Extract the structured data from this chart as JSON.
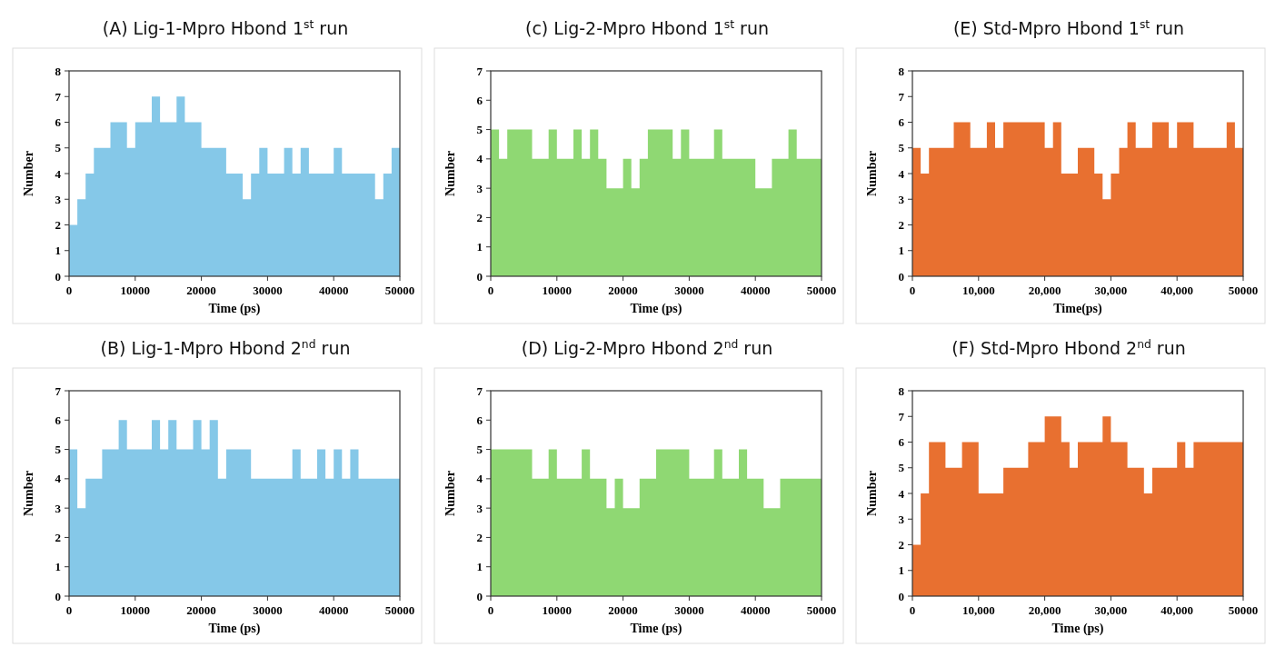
{
  "chart_data": [
    {
      "type": "area",
      "title": "(A) Lig-1-Mpro Hbond 1$^{st}$ run",
      "xlabel": "Time (ps)",
      "ylabel": "Number",
      "x": [
        0,
        1250,
        2500,
        3750,
        5000,
        6250,
        7500,
        8750,
        10000,
        11250,
        12500,
        13750,
        15000,
        16250,
        17500,
        18750,
        20000,
        21250,
        22500,
        23750,
        25000,
        26250,
        27500,
        28750,
        30000,
        31250,
        32500,
        33750,
        35000,
        36250,
        37500,
        38750,
        40000,
        41250,
        42500,
        43750,
        45000,
        46250,
        47500,
        48750,
        50000
      ],
      "xlim": [
        0,
        50000
      ],
      "xticks": [
        0,
        10000,
        20000,
        30000,
        40000,
        50000
      ],
      "ylim": [
        0,
        8
      ],
      "yticks": [
        0,
        1,
        2,
        3,
        4,
        5,
        6,
        7,
        8
      ],
      "series": [
        {
          "color": "#85c8e8",
          "values": [
            2,
            3,
            4,
            5,
            5,
            6,
            6,
            5,
            6,
            6,
            7,
            6,
            6,
            7,
            6,
            6,
            5,
            5,
            5,
            4,
            4,
            3,
            4,
            5,
            4,
            4,
            5,
            4,
            5,
            4,
            4,
            4,
            5,
            4,
            4,
            4,
            4,
            3,
            4,
            5,
            4
          ]
        }
      ]
    },
    {
      "type": "area",
      "title": "(c) Lig-2-Mpro Hbond 1$^{st}$ run",
      "xlabel": "Time (ps)",
      "ylabel": "Number",
      "x": [
        0,
        1250,
        2500,
        3750,
        5000,
        6250,
        7500,
        8750,
        10000,
        11250,
        12500,
        13750,
        15000,
        16250,
        17500,
        18750,
        20000,
        21250,
        22500,
        23750,
        25000,
        26250,
        27500,
        28750,
        30000,
        31250,
        32500,
        33750,
        35000,
        36250,
        37500,
        38750,
        40000,
        41250,
        42500,
        43750,
        45000,
        46250,
        47500,
        48750,
        50000
      ],
      "xlim": [
        0,
        50000
      ],
      "xticks": [
        0,
        10000,
        20000,
        30000,
        40000,
        50000
      ],
      "ylim": [
        0,
        7
      ],
      "yticks": [
        0,
        1,
        2,
        3,
        4,
        5,
        6,
        7
      ],
      "series": [
        {
          "color": "#8fd873",
          "values": [
            5,
            4,
            5,
            5,
            5,
            4,
            4,
            5,
            4,
            4,
            5,
            4,
            5,
            4,
            3,
            3,
            4,
            3,
            4,
            5,
            5,
            5,
            4,
            5,
            4,
            4,
            4,
            5,
            4,
            4,
            4,
            4,
            3,
            3,
            4,
            4,
            5,
            4,
            4,
            4,
            4
          ]
        }
      ]
    },
    {
      "type": "area",
      "title": "(E) Std-Mpro Hbond 1$^{st}$ run",
      "xlabel": "Time(ps)",
      "ylabel": "Number",
      "x": [
        0,
        1250,
        2500,
        3750,
        5000,
        6250,
        7500,
        8750,
        10000,
        11250,
        12500,
        13750,
        15000,
        16250,
        17500,
        18750,
        20000,
        21250,
        22500,
        23750,
        25000,
        26250,
        27500,
        28750,
        30000,
        31250,
        32500,
        33750,
        35000,
        36250,
        37500,
        38750,
        40000,
        41250,
        42500,
        43750,
        45000,
        46250,
        47500,
        48750,
        50000
      ],
      "xlim": [
        0,
        50000
      ],
      "xticks": [
        0,
        {
          "value": 10000,
          "label": "10,000"
        },
        {
          "value": 20000,
          "label": "20,000"
        },
        {
          "value": 30000,
          "label": "30,000"
        },
        {
          "value": 40000,
          "label": "40,000"
        },
        50000
      ],
      "ylim": [
        0,
        8
      ],
      "yticks": [
        0,
        1,
        2,
        3,
        4,
        5,
        6,
        7,
        8
      ],
      "series": [
        {
          "color": "#e87030",
          "values": [
            5,
            4,
            5,
            5,
            5,
            6,
            6,
            5,
            5,
            6,
            5,
            6,
            6,
            6,
            6,
            6,
            5,
            6,
            4,
            4,
            5,
            5,
            4,
            3,
            4,
            5,
            6,
            5,
            5,
            6,
            6,
            5,
            6,
            6,
            5,
            5,
            5,
            5,
            6,
            5,
            3
          ]
        }
      ]
    },
    {
      "type": "area",
      "title": "(B) Lig-1-Mpro Hbond 2$^{nd}$ run",
      "xlabel": "Time (ps)",
      "ylabel": "Number",
      "x": [
        0,
        1250,
        2500,
        3750,
        5000,
        6250,
        7500,
        8750,
        10000,
        11250,
        12500,
        13750,
        15000,
        16250,
        17500,
        18750,
        20000,
        21250,
        22500,
        23750,
        25000,
        26250,
        27500,
        28750,
        30000,
        31250,
        32500,
        33750,
        35000,
        36250,
        37500,
        38750,
        40000,
        41250,
        42500,
        43750,
        45000,
        46250,
        47500,
        48750,
        50000
      ],
      "xlim": [
        0,
        50000
      ],
      "xticks": [
        0,
        10000,
        20000,
        30000,
        40000,
        50000
      ],
      "ylim": [
        0,
        7
      ],
      "yticks": [
        0,
        1,
        2,
        3,
        4,
        5,
        6,
        7
      ],
      "series": [
        {
          "color": "#85c8e8",
          "values": [
            5,
            3,
            4,
            4,
            5,
            5,
            6,
            5,
            5,
            5,
            6,
            5,
            6,
            5,
            5,
            6,
            5,
            6,
            4,
            5,
            5,
            5,
            4,
            4,
            4,
            4,
            4,
            5,
            4,
            4,
            5,
            4,
            5,
            4,
            5,
            4,
            4,
            4,
            4,
            4,
            4
          ]
        }
      ]
    },
    {
      "type": "area",
      "title": "(D) Lig-2-Mpro Hbond 2$^{nd}$ run",
      "xlabel": "Time (ps)",
      "ylabel": "Number",
      "x": [
        0,
        1250,
        2500,
        3750,
        5000,
        6250,
        7500,
        8750,
        10000,
        11250,
        12500,
        13750,
        15000,
        16250,
        17500,
        18750,
        20000,
        21250,
        22500,
        23750,
        25000,
        26250,
        27500,
        28750,
        30000,
        31250,
        32500,
        33750,
        35000,
        36250,
        37500,
        38750,
        40000,
        41250,
        42500,
        43750,
        45000,
        46250,
        47500,
        48750,
        50000
      ],
      "xlim": [
        0,
        50000
      ],
      "xticks": [
        0,
        10000,
        20000,
        30000,
        40000,
        50000
      ],
      "ylim": [
        0,
        7
      ],
      "yticks": [
        0,
        1,
        2,
        3,
        4,
        5,
        6,
        7
      ],
      "series": [
        {
          "color": "#8fd873",
          "values": [
            5,
            5,
            5,
            5,
            5,
            4,
            4,
            5,
            4,
            4,
            4,
            5,
            4,
            4,
            3,
            4,
            3,
            3,
            4,
            4,
            5,
            5,
            5,
            5,
            4,
            4,
            4,
            5,
            4,
            4,
            5,
            4,
            4,
            3,
            3,
            4,
            4,
            4,
            4,
            4,
            3
          ]
        }
      ]
    },
    {
      "type": "area",
      "title": "(F) Std-Mpro Hbond 2$^{nd}$ run",
      "xlabel": "Time (ps)",
      "ylabel": "Number",
      "x": [
        0,
        1250,
        2500,
        3750,
        5000,
        6250,
        7500,
        8750,
        10000,
        11250,
        12500,
        13750,
        15000,
        16250,
        17500,
        18750,
        20000,
        21250,
        22500,
        23750,
        25000,
        26250,
        27500,
        28750,
        30000,
        31250,
        32500,
        33750,
        35000,
        36250,
        37500,
        38750,
        40000,
        41250,
        42500,
        43750,
        45000,
        46250,
        47500,
        48750,
        50000
      ],
      "xlim": [
        0,
        50000
      ],
      "xticks": [
        0,
        {
          "value": 10000,
          "label": "10,000"
        },
        {
          "value": 20000,
          "label": "20,000"
        },
        {
          "value": 30000,
          "label": "30,000"
        },
        {
          "value": 40000,
          "label": "40,000"
        },
        50000
      ],
      "ylim": [
        0,
        8
      ],
      "yticks": [
        0,
        1,
        2,
        3,
        4,
        5,
        6,
        7,
        8
      ],
      "series": [
        {
          "color": "#e87030",
          "values": [
            2,
            4,
            6,
            6,
            5,
            5,
            6,
            6,
            4,
            4,
            4,
            5,
            5,
            5,
            6,
            6,
            7,
            7,
            6,
            5,
            6,
            6,
            6,
            7,
            6,
            6,
            5,
            5,
            4,
            5,
            5,
            5,
            6,
            5,
            6,
            6,
            6,
            6,
            6,
            6,
            5
          ]
        }
      ]
    }
  ]
}
